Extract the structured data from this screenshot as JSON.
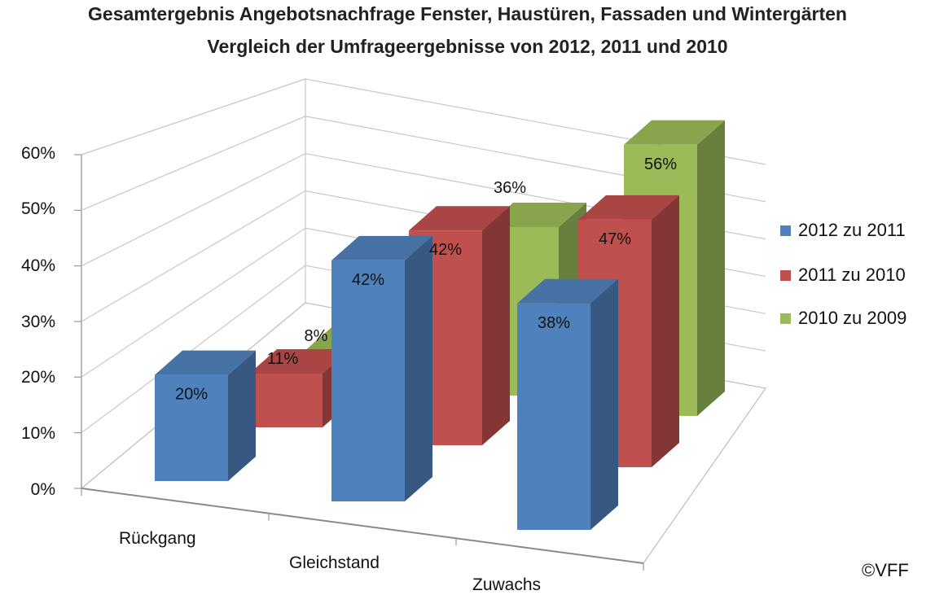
{
  "chart_data": {
    "type": "bar",
    "title": "Gesamtergebnis Angebotsnachfrage Fenster, Haustüren, Fassaden und Wintergärten",
    "subtitle": "Vergleich der Umfrageergebnisse von 2012, 2011 und 2010",
    "categories": [
      "Rückgang",
      "Gleichstand",
      "Zuwachs"
    ],
    "series": [
      {
        "name": "2012 zu 2011",
        "values": [
          20,
          42,
          38
        ],
        "labels": [
          "20%",
          "42%",
          "38%"
        ],
        "color": "#4f81bd"
      },
      {
        "name": "2011 zu 2010",
        "values": [
          11,
          42,
          47
        ],
        "labels": [
          "11%",
          "42%",
          "47%"
        ],
        "color": "#c0504d"
      },
      {
        "name": "2010 zu 2009",
        "values": [
          8,
          36,
          56
        ],
        "labels": [
          "8%",
          "36%",
          "56%"
        ],
        "color": "#9bbb59"
      }
    ],
    "yticks": [
      "0%",
      "10%",
      "20%",
      "30%",
      "40%",
      "50%",
      "60%"
    ],
    "ylim": [
      0,
      60
    ],
    "grid": true,
    "legend_position": "right",
    "style": "3d-column"
  },
  "credit": "©VFF"
}
